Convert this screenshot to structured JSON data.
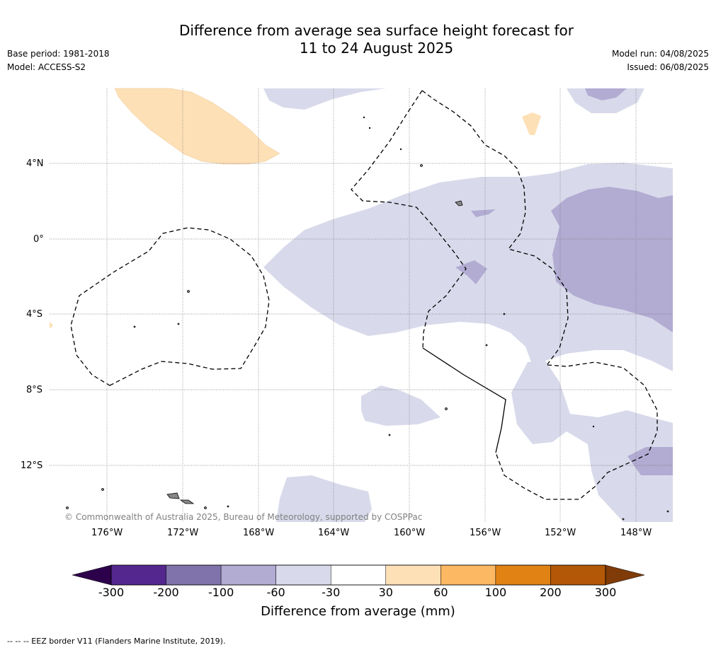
{
  "title_line1": "Difference from average sea surface height forecast for",
  "title_line2": "11 to 24 August 2025",
  "base_period": "Base period: 1981-2018",
  "model": "Model: ACCESS-S2",
  "model_run": "Model run: 04/08/2025",
  "issued": "Issued: 06/08/2025",
  "credit": "© Commonwealth of Australia 2025, Bureau of Meteorology, supported by COSPPac",
  "lat_labels": [
    "4°N",
    "0°",
    "4°S",
    "8°S",
    "12°S"
  ],
  "lon_labels": [
    "176°W",
    "172°W",
    "168°W",
    "164°W",
    "160°W",
    "156°W",
    "152°W",
    "148°W"
  ],
  "colorbar": {
    "title": "Difference from average (mm)",
    "ticks": [
      "-300",
      "-200",
      "-100",
      "-60",
      "-30",
      "30",
      "60",
      "100",
      "200",
      "300"
    ],
    "colors": [
      "#54278f",
      "#8073ac",
      "#b2abd2",
      "#d8daeb",
      "#ffffff",
      "#fee0b6",
      "#fdb863",
      "#e08214",
      "#b35806"
    ],
    "under_color": "#2d004b",
    "over_color": "#7f3b08"
  },
  "footnote": "--  --  -- EEZ border V11 (Flanders Marine Institute, 2019)."
}
